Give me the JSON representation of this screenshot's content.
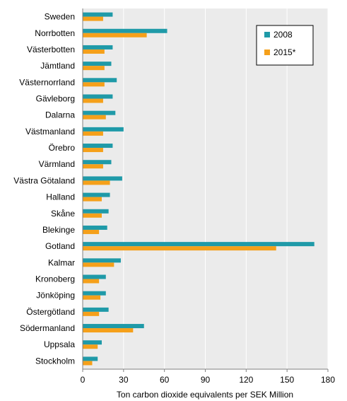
{
  "chart_data": {
    "type": "bar",
    "orientation": "horizontal",
    "title": "",
    "xlabel": "Ton carbon dioxide equivalents  per SEK Million",
    "ylabel": "",
    "xlim": [
      0,
      180
    ],
    "xticks": [
      0,
      30,
      60,
      90,
      120,
      150,
      180
    ],
    "grid": "vertical",
    "legend": "top-right",
    "colors": {
      "2008": "#1f9aa8",
      "2015*": "#f5a01a",
      "plot_bg": "#ebebeb",
      "grid": "#ffffff"
    },
    "categories": [
      "Sweden",
      "Norrbotten",
      "Västerbotten",
      "Jämtland",
      "Västernorrland",
      "Gävleborg",
      "Dalarna",
      "Västmanland",
      "Örebro",
      "Värmland",
      "Västra Götaland",
      "Halland",
      "Skåne",
      "Blekinge",
      "Gotland",
      "Kalmar",
      "Kronoberg",
      "Jönköping",
      "Östergötland",
      "Södermanland",
      "Uppsala",
      "Stockholm"
    ],
    "series": [
      {
        "name": "2008",
        "values": [
          22,
          62,
          22,
          21,
          25,
          22,
          24,
          30,
          22,
          21,
          29,
          20,
          19,
          18,
          170,
          28,
          17,
          17,
          19,
          45,
          14,
          11
        ]
      },
      {
        "name": "2015*",
        "values": [
          15,
          47,
          16,
          16,
          16,
          15,
          17,
          15,
          15,
          15,
          20,
          14,
          14,
          12,
          142,
          23,
          12,
          13,
          12,
          37,
          11,
          7
        ]
      }
    ]
  }
}
